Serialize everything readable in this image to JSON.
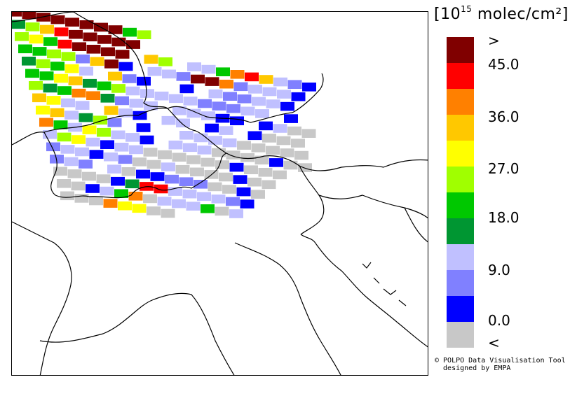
{
  "legend": {
    "title_prefix": "[10",
    "title_exponent": "15",
    "title_suffix": " molec/cm²]",
    "colors": [
      "#800000",
      "#ff0000",
      "#ff8000",
      "#ffc800",
      "#ffff00",
      "#a0ff00",
      "#00c800",
      "#009632",
      "#c0c0ff",
      "#8080ff",
      "#0000ff",
      "#c8c8c8"
    ],
    "labels": [
      ">",
      "45.0",
      "36.0",
      "27.0",
      "18.0",
      "9.0",
      "0.0",
      "<"
    ]
  },
  "credit": {
    "line1": "© POLPO Data Visualisation Tool",
    "line2": "  designed by EMPA"
  }
}
